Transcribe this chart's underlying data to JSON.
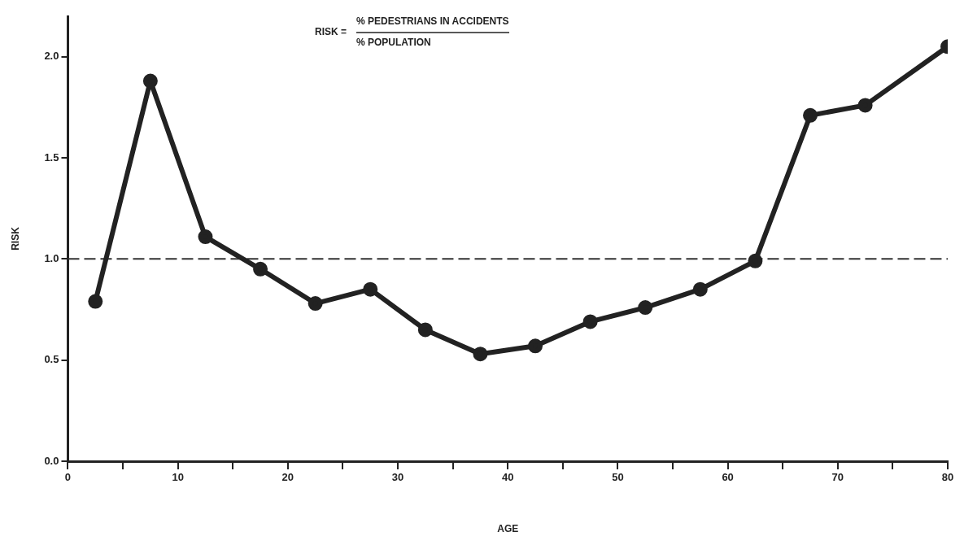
{
  "chart_data": {
    "type": "line",
    "xlabel": "AGE",
    "ylabel": "RISK",
    "annotations": [
      "RISK =",
      "% PEDESTRIANS IN ACCIDENTS",
      "% POPULATION"
    ],
    "x": [
      2.5,
      7.5,
      12.5,
      17.5,
      22.5,
      27.5,
      32.5,
      37.5,
      42.5,
      47.5,
      52.5,
      57.5,
      62.5,
      67.5,
      72.5,
      80
    ],
    "series": [
      {
        "color": "#222222",
        "values": [
          0.79,
          1.88,
          1.11,
          0.95,
          0.78,
          0.85,
          0.65,
          0.53,
          0.57,
          0.69,
          0.76,
          0.85,
          0.99,
          1.71,
          1.76,
          2.05
        ]
      }
    ],
    "xlim": [
      0,
      80
    ],
    "xticks": [
      0,
      {
        "value": 5,
        "label": null
      },
      10,
      {
        "value": 15,
        "label": null
      },
      20,
      {
        "value": 25,
        "label": null
      },
      30,
      {
        "value": 35,
        "label": null
      },
      40,
      {
        "value": 45,
        "label": null
      },
      50,
      {
        "value": 55,
        "label": null
      },
      60,
      {
        "value": 65,
        "label": null
      },
      70,
      {
        "value": 75,
        "label": null
      },
      80
    ],
    "ylim": [
      0,
      2.2
    ],
    "yticks": [
      {
        "value": 0,
        "label": "0.0"
      },
      0.5,
      {
        "value": 1,
        "label": "1.0"
      },
      1.5,
      {
        "value": 2,
        "label": "2.0"
      }
    ],
    "ref_lines": [
      {
        "axis": "y",
        "value": 1,
        "line_style": "dashed",
        "color": "#333333"
      }
    ],
    "grid": false,
    "legend": false,
    "marker": "circle",
    "line_style": "solid"
  }
}
